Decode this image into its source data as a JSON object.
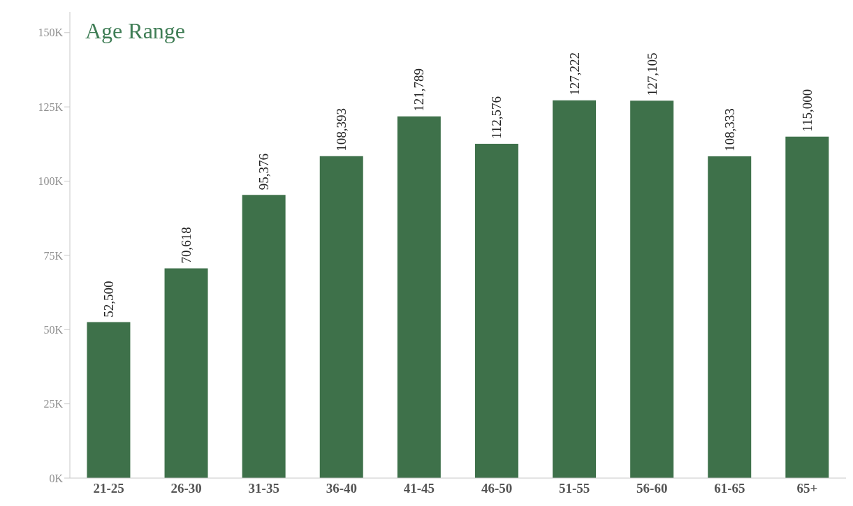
{
  "chart_data": {
    "type": "bar",
    "title": "Age Range",
    "categories": [
      "21-25",
      "26-30",
      "31-35",
      "36-40",
      "41-45",
      "46-50",
      "51-55",
      "56-60",
      "61-65",
      "65+"
    ],
    "values": [
      52500,
      70618,
      95376,
      108393,
      121789,
      112576,
      127222,
      127105,
      108333,
      115000
    ],
    "value_labels": [
      "52,500",
      "70,618",
      "95,376",
      "108,393",
      "121,789",
      "112,576",
      "127,222",
      "127,105",
      "108,333",
      "115,000"
    ],
    "color": "#3e714a",
    "ylim": [
      0,
      157000
    ],
    "yticks": [
      {
        "value": 0,
        "label": "0K"
      },
      {
        "value": 25000,
        "label": "25K"
      },
      {
        "value": 50000,
        "label": "50K"
      },
      {
        "value": 75000,
        "label": "75K"
      },
      {
        "value": 100000,
        "label": "100K"
      },
      {
        "value": 125000,
        "label": "125K"
      },
      {
        "value": 150000,
        "label": "150K"
      }
    ]
  }
}
